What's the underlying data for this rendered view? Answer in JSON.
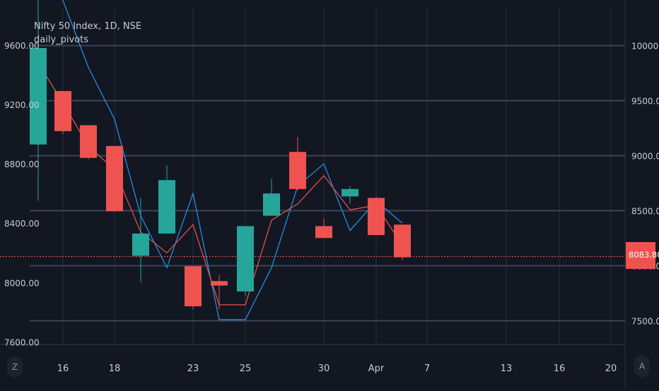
{
  "header": {
    "title": "Nifty 50 Index, 1D, NSE",
    "indicator": "daily_pivots"
  },
  "last_price_label": "8083.80",
  "buttons": {
    "zoom_label": "Z",
    "auto_label": "A"
  },
  "colors": {
    "background": "#131722",
    "up": "#26a69a",
    "down": "#ef5350",
    "grid": "#2a2e39",
    "pivot_line": "#3d4356",
    "blue_line": "#2196f3",
    "red_line": "#ef5350",
    "text": "#c8cbd4"
  },
  "chart_data": {
    "type": "candlestick",
    "title": "Nifty 50 Index, 1D, NSE",
    "series": [
      {
        "name": "Nifty 50 Index",
        "dates": [
          "2020-03-13",
          "2020-03-16",
          "2020-03-17",
          "2020-03-18",
          "2020-03-19",
          "2020-03-20",
          "2020-03-23",
          "2020-03-24",
          "2020-03-25",
          "2020-03-26",
          "2020-03-27",
          "2020-03-30",
          "2020-03-31",
          "2020-04-01",
          "2020-04-03"
        ],
        "open": [
          8930,
          9290,
          9060,
          8920,
          8180,
          8330,
          8110,
          8010,
          7940,
          8450,
          8880,
          8380,
          8580,
          8570,
          8390
        ],
        "high": [
          9960,
          9290,
          9060,
          8920,
          8570,
          8790,
          8110,
          8050,
          8380,
          8700,
          8980,
          8430,
          8650,
          8580,
          8390
        ],
        "low": [
          8550,
          9000,
          8830,
          8480,
          8000,
          8330,
          7820,
          7820,
          7910,
          8450,
          8620,
          8300,
          8530,
          8320,
          8150
        ],
        "close": [
          9580,
          9020,
          8840,
          8480,
          8330,
          8690,
          7840,
          7980,
          8380,
          8600,
          8630,
          8300,
          8630,
          8320,
          8170
        ]
      },
      {
        "name": "daily_pivots (blue)",
        "values": [
          10150,
          9900,
          9450,
          9100,
          8450,
          8100,
          8600,
          7750,
          7750,
          8100,
          8650,
          8800,
          8350,
          8550,
          8400
        ]
      },
      {
        "name": "daily_pivots (red)",
        "values": [
          9480,
          9210,
          8920,
          8760,
          8340,
          8200,
          8390,
          7850,
          7850,
          8420,
          8530,
          8720,
          8490,
          8520,
          8250
        ]
      }
    ],
    "x_ticks": [
      "16",
      "18",
      "23",
      "25",
      "30",
      "Apr",
      "7",
      "13",
      "16",
      "20"
    ],
    "y_ticks_left": [
      "9600.00",
      "9200.00",
      "8800.00",
      "8400.00",
      "8000.00",
      "7600.00"
    ],
    "y_ticks_right": [
      "10000.00",
      "9500.00",
      "9000.00",
      "8500.00",
      "8000.00",
      "7500.00"
    ],
    "pivot_levels": [
      10000,
      9500,
      9000,
      8500,
      8000,
      7500
    ],
    "last_price": 8083.8,
    "ylim_left": [
      7583,
      9894
    ],
    "ylim_right": [
      7285,
      10402
    ],
    "grid": true
  }
}
